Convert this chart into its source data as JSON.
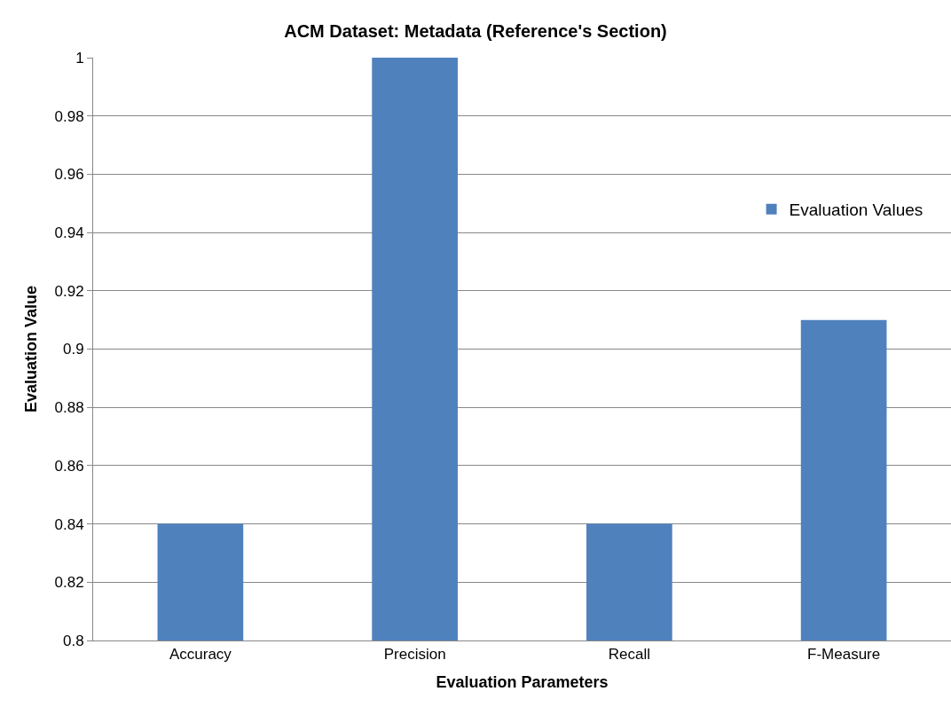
{
  "chart_data": {
    "type": "bar",
    "title": "ACM Dataset: Metadata (Reference's Section)",
    "xlabel": "Evaluation Parameters",
    "ylabel": "Evaluation Value",
    "categories": [
      "Accuracy",
      "Precision",
      "Recall",
      "F-Measure"
    ],
    "series": [
      {
        "name": "Evaluation Values",
        "color": "#4f81bd",
        "values": [
          0.84,
          1.0,
          0.84,
          0.91
        ]
      }
    ],
    "ylim": [
      0.8,
      1
    ],
    "yticks": [
      0.8,
      0.82,
      0.84,
      0.86,
      0.88,
      0.9,
      0.92,
      0.94,
      0.96,
      0.98,
      1
    ],
    "grid": "y",
    "legend": "right"
  }
}
